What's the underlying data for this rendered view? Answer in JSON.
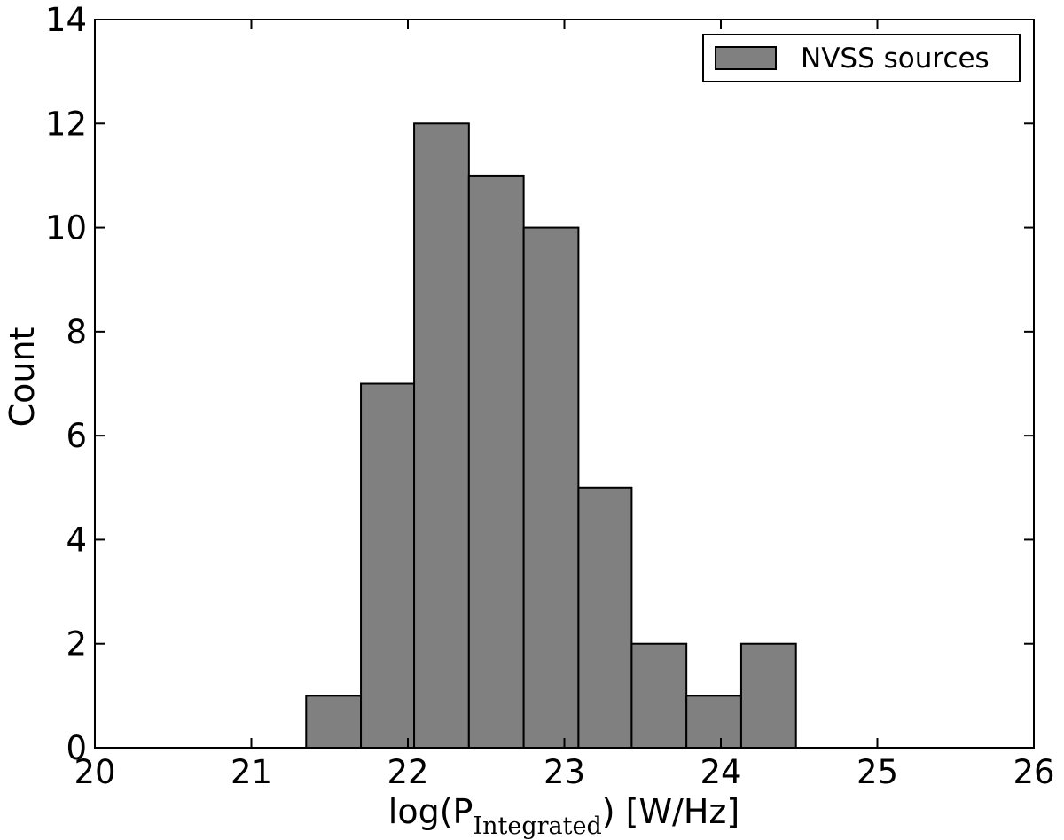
{
  "chart_data": {
    "type": "bar",
    "bins": [
      {
        "x0": 21.35,
        "x1": 21.7,
        "count": 1
      },
      {
        "x0": 21.7,
        "x1": 22.04,
        "count": 7
      },
      {
        "x0": 22.04,
        "x1": 22.39,
        "count": 12
      },
      {
        "x0": 22.39,
        "x1": 22.74,
        "count": 11
      },
      {
        "x0": 22.74,
        "x1": 23.09,
        "count": 10
      },
      {
        "x0": 23.09,
        "x1": 23.43,
        "count": 5
      },
      {
        "x0": 23.43,
        "x1": 23.78,
        "count": 2
      },
      {
        "x0": 23.78,
        "x1": 24.13,
        "count": 1
      },
      {
        "x0": 24.13,
        "x1": 24.48,
        "count": 2
      }
    ],
    "series": [
      {
        "name": "NVSS sources",
        "color": "#808080"
      }
    ],
    "xlim": [
      20,
      26
    ],
    "ylim": [
      0,
      14
    ],
    "xticks": [
      "20",
      "21",
      "22",
      "23",
      "24",
      "25",
      "26"
    ],
    "yticks": [
      "0",
      "2",
      "4",
      "6",
      "8",
      "10",
      "12",
      "14"
    ],
    "xlabel": {
      "prefix": "log(P",
      "subscript": "Integrated",
      "suffix": ") [W/Hz]"
    },
    "ylabel": "Count",
    "legend": {
      "position": "top-right",
      "label": "NVSS sources"
    },
    "grid": false
  }
}
